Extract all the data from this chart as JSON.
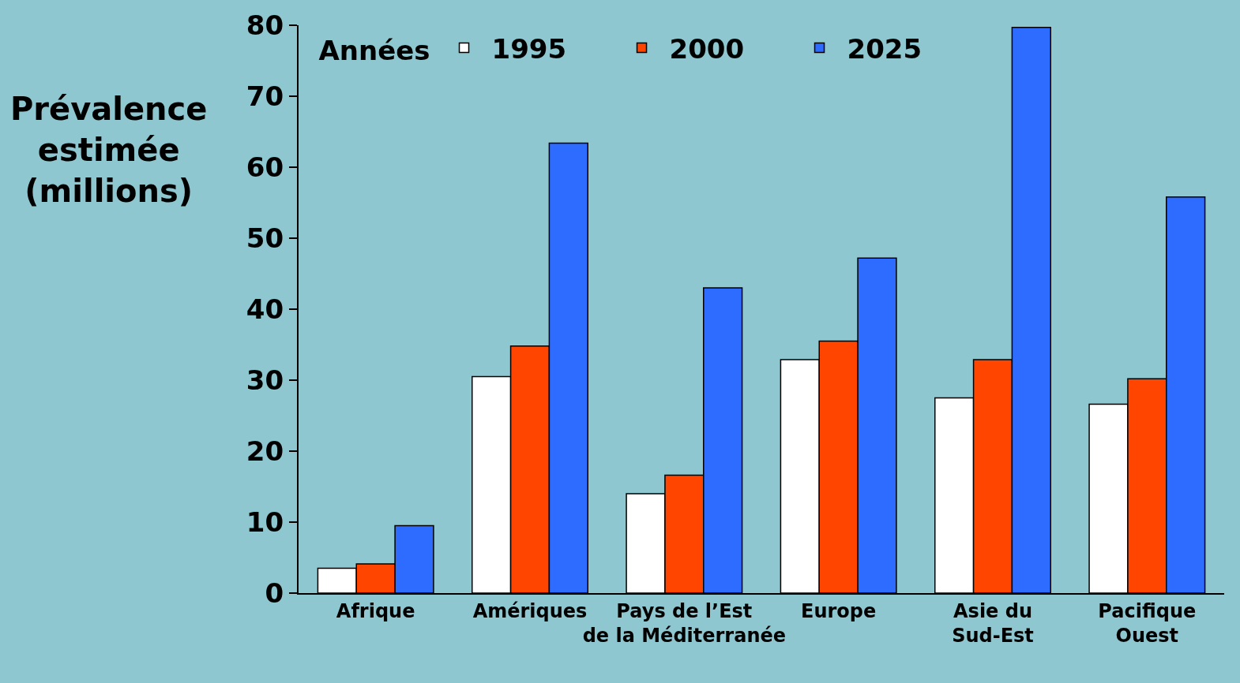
{
  "chart_data": {
    "type": "bar",
    "ylabel": "Prévalence\nestimée\n(millions)",
    "legend_title": "Années",
    "legend": "top left",
    "categories": [
      "Afrique",
      "Amériques",
      "Pays de l’Est\nde la Méditerranée",
      "Europe",
      "Asie du\nSud-Est",
      "Pacifique\nOuest"
    ],
    "series": [
      {
        "name": "1995",
        "color": "#ffffff",
        "values": [
          3.5,
          30.5,
          14.0,
          32.9,
          27.5,
          26.6
        ]
      },
      {
        "name": "2000",
        "color": "#ff4500",
        "values": [
          4.1,
          34.8,
          16.6,
          35.5,
          32.9,
          30.2
        ]
      },
      {
        "name": "2025",
        "color": "#2e6bff",
        "values": [
          9.5,
          63.4,
          43.0,
          47.2,
          79.7,
          55.8
        ]
      }
    ],
    "ylim": [
      0,
      80
    ],
    "yticks": [
      0,
      10,
      20,
      30,
      40,
      50,
      60,
      70,
      80
    ],
    "grid": false
  }
}
